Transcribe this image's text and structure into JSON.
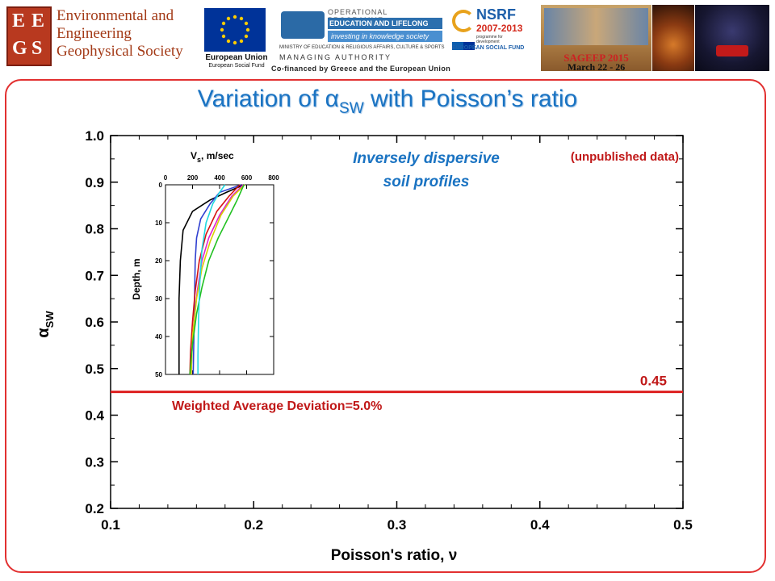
{
  "header": {
    "society_name": "Environmental and Engineering Geophysical Society",
    "eegs_letters": [
      "E",
      "E",
      "G",
      "S"
    ],
    "eu_caption": "European Union",
    "eu_subcaption": "European Social Fund",
    "op_line1": "OPERATIONAL PROGRAMME",
    "op_line2": "EDUCATION AND LIFELONG LEARNING",
    "op_line3": "investing in knowledge society",
    "op_line4": "MINISTRY OF EDUCATION & RELIGIOUS AFFAIRS, CULTURE & SPORTS",
    "op_line5": "MANAGING AUTHORITY",
    "cofinanced": "Co-financed by Greece and the European Union",
    "nsrf_title": "NSRF",
    "nsrf_years": "2007-2013",
    "nsrf_tagline": "programme for development",
    "esf_caption": "EUROPEAN SOCIAL FUND",
    "sageep_line1": "SAGEEP 2015",
    "sageep_line2": "March 22 - 26"
  },
  "slide": {
    "title_main": "Variation of α",
    "title_sub": "SW",
    "title_rest": " with Poisson’s ratio"
  },
  "colors": {
    "title": "#1a73c2",
    "frame": "#e23030",
    "reference_line": "#dd1f1f",
    "annotation_red": "#c01818",
    "annotation_blue": "#1a73c2"
  },
  "chart_data": [
    {
      "type": "line",
      "xlabel": "Poisson's ratio, ν",
      "ylabel": "αSW",
      "ylabel_main": "α",
      "ylabel_sub": "SW",
      "xlim": [
        0.1,
        0.5
      ],
      "ylim": [
        0.2,
        1.0
      ],
      "x_ticks": [
        "0.1",
        "0.2",
        "0.3",
        "0.4",
        "0.5"
      ],
      "y_ticks": [
        "0.2",
        "0.3",
        "0.4",
        "0.5",
        "0.6",
        "0.7",
        "0.8",
        "0.9",
        "1.0"
      ],
      "grid": false,
      "reference_line": {
        "y": 0.45,
        "label": "0.45"
      },
      "annotations": {
        "deviation": "Weighted Average Deviation=5.0%",
        "profile_line1": "Inversely dispersive",
        "profile_line2": "soil profiles",
        "unpublished": "(unpublished data)"
      }
    },
    {
      "type": "line",
      "xlabel": "Vs, m/sec",
      "xlabel_main": "V",
      "xlabel_sub": "s",
      "xlabel_rest": ", m/sec",
      "ylabel": "Depth, m",
      "xlim": [
        0,
        800
      ],
      "ylim": [
        0,
        50
      ],
      "x_ticks": [
        "0",
        "200",
        "400",
        "600",
        "800"
      ],
      "y_ticks": [
        "0",
        "10",
        "20",
        "30",
        "40",
        "50"
      ],
      "series": [
        {
          "color": "#000000",
          "points": [
            [
              580,
              0
            ],
            [
              450,
              2
            ],
            [
              330,
              4
            ],
            [
              200,
              7
            ],
            [
              130,
              12
            ],
            [
              110,
              20
            ],
            [
              100,
              30
            ],
            [
              100,
              40
            ],
            [
              100,
              50
            ]
          ]
        },
        {
          "color": "#2f3fd0",
          "points": [
            [
              560,
              0
            ],
            [
              400,
              2
            ],
            [
              330,
              5
            ],
            [
              260,
              9
            ],
            [
              230,
              14
            ],
            [
              220,
              20
            ],
            [
              215,
              30
            ],
            [
              210,
              40
            ],
            [
              205,
              50
            ]
          ]
        },
        {
          "color": "#d41010",
          "points": [
            [
              550,
              0
            ],
            [
              470,
              3
            ],
            [
              380,
              7
            ],
            [
              300,
              13
            ],
            [
              250,
              20
            ],
            [
              220,
              28
            ],
            [
              200,
              36
            ],
            [
              185,
              44
            ],
            [
              180,
              50
            ]
          ]
        },
        {
          "color": "#e020d0",
          "points": [
            [
              575,
              0
            ],
            [
              490,
              3
            ],
            [
              400,
              8
            ],
            [
              320,
              14
            ],
            [
              270,
              20
            ],
            [
              235,
              28
            ],
            [
              210,
              36
            ],
            [
              195,
              44
            ],
            [
              190,
              50
            ]
          ]
        },
        {
          "color": "#d8d000",
          "points": [
            [
              585,
              0
            ],
            [
              500,
              3
            ],
            [
              410,
              8
            ],
            [
              330,
              15
            ],
            [
              270,
              22
            ],
            [
              230,
              30
            ],
            [
              200,
              40
            ],
            [
              190,
              50
            ]
          ]
        },
        {
          "color": "#20c020",
          "points": [
            [
              580,
              0
            ],
            [
              530,
              4
            ],
            [
              460,
              9
            ],
            [
              390,
              14
            ],
            [
              320,
              20
            ],
            [
              270,
              27
            ],
            [
              230,
              34
            ],
            [
              200,
              42
            ],
            [
              180,
              50
            ]
          ]
        },
        {
          "color": "#20d8e0",
          "points": [
            [
              440,
              0
            ],
            [
              400,
              2
            ],
            [
              350,
              5
            ],
            [
              300,
              10
            ],
            [
              270,
              17
            ],
            [
              255,
              25
            ],
            [
              245,
              35
            ],
            [
              240,
              45
            ],
            [
              240,
              50
            ]
          ]
        }
      ]
    }
  ]
}
